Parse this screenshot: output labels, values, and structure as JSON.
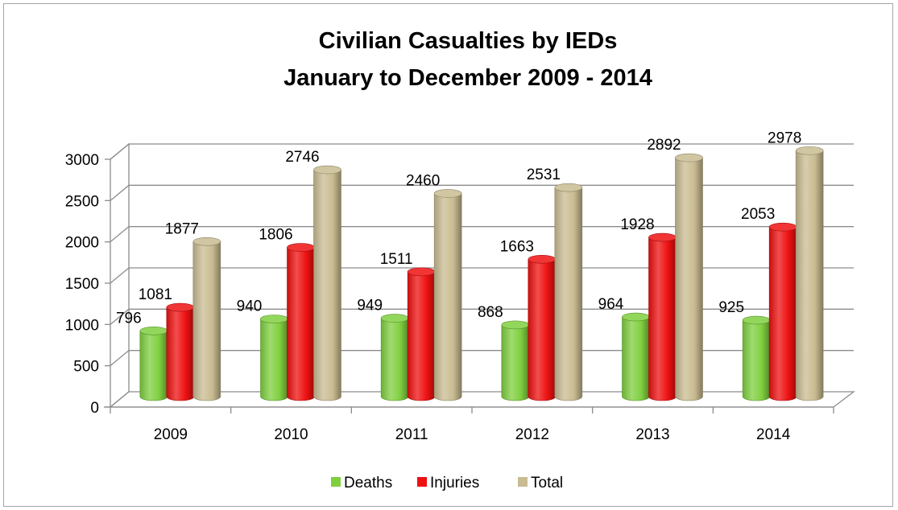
{
  "chart_data": {
    "type": "bar",
    "title_lines": [
      "Civilian Casualties by IEDs",
      "January to December 2009 - 2014"
    ],
    "categories": [
      "2009",
      "2010",
      "2011",
      "2012",
      "2013",
      "2014"
    ],
    "series": [
      {
        "name": "Deaths",
        "values": [
          796,
          940,
          949,
          868,
          964,
          925
        ],
        "color": "#7fcf3f"
      },
      {
        "name": "Injuries",
        "values": [
          1081,
          1806,
          1511,
          1663,
          1928,
          2053
        ],
        "color": "#ee1111"
      },
      {
        "name": "Total",
        "values": [
          1877,
          2746,
          2460,
          2531,
          2892,
          2978
        ],
        "color": "#c9bc92"
      }
    ],
    "y_ticks": [
      0,
      500,
      1000,
      1500,
      2000,
      2500,
      3000
    ],
    "ylim": [
      0,
      3000
    ],
    "grid": true,
    "legend_position": "bottom",
    "style": "3d-cylinder"
  }
}
